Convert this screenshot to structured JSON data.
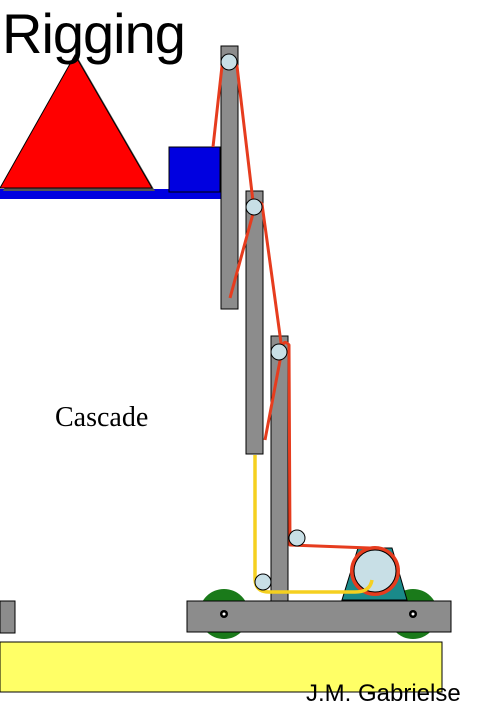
{
  "title": "Rigging",
  "label": "Cascade",
  "credit": "J.M. Gabrielse",
  "colors": {
    "column": "#8c8c8c",
    "rope_red": "#e63c1e",
    "rope_yellow": "#f5d020",
    "load_triangle": "#ff0000",
    "platform": "#0000e0",
    "base_pad": "#ffff66",
    "wheel": "#1a7a1a",
    "winch": "#1a8a8a",
    "pulley": "#c8dfe6"
  },
  "icons": [
    "pulley-icon",
    "wheel-icon",
    "winch-icon"
  ]
}
